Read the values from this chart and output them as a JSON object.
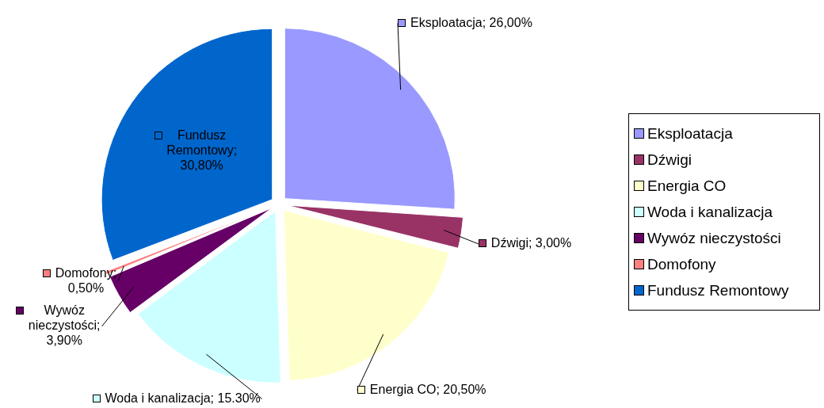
{
  "chart_data": {
    "type": "pie",
    "categories": [
      "Eksploatacja",
      "Dźwigi",
      "Energia CO",
      "Woda i kanalizacja",
      "Wywóz nieczystości",
      "Domofony",
      "Fundusz Remontowy"
    ],
    "values": [
      26,
      3,
      20.5,
      15.3,
      3.9,
      0.5,
      30.8
    ],
    "colors": [
      "#9999ff",
      "#993366",
      "#ffffcc",
      "#ccffff",
      "#660066",
      "#ff8080",
      "#0066cc"
    ],
    "value_labels": [
      "Eksploatacja; 26,00%",
      "Dźwigi; 3,00%",
      "Energia CO; 20,50%",
      "Woda i kanalizacja; 15.30%",
      "Wywóz nieczystości; 3,90%",
      "Domofony; 0,50%",
      "Fundusz Remontowy; 30,80%"
    ],
    "legend": "right"
  }
}
